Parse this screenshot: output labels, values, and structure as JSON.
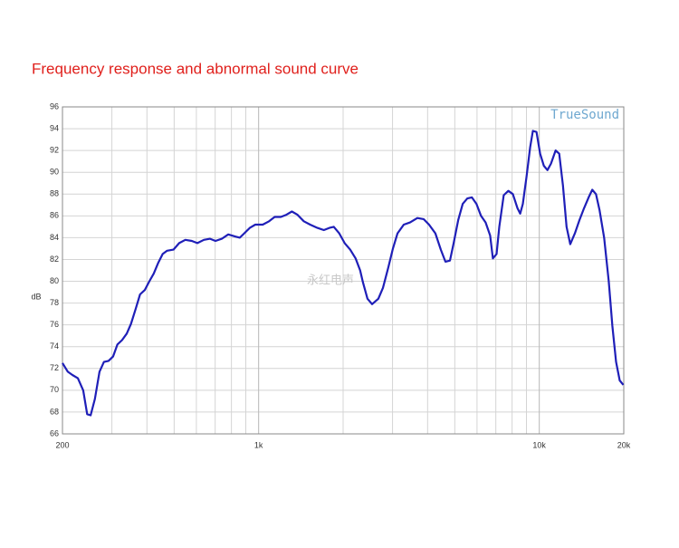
{
  "chart_data": {
    "type": "line",
    "title": "Frequency response and abnormal sound curve",
    "y_label": "dB",
    "annotations": [
      "TrueSound",
      "永红电声"
    ],
    "log_x": true,
    "grid": true,
    "xlim": [
      200,
      20000
    ],
    "ylim": [
      66,
      96
    ],
    "xticks": [
      200,
      {
        "value": 1000,
        "label": "1k"
      },
      {
        "value": 10000,
        "label": "10k"
      },
      {
        "value": 20000,
        "label": "20k"
      }
    ],
    "x_minor_gridlines": [
      300,
      400,
      500,
      600,
      700,
      800,
      900,
      2000,
      3000,
      4000,
      5000,
      6000,
      7000,
      8000,
      9000
    ],
    "yticks": [
      66,
      68,
      70,
      72,
      74,
      76,
      78,
      80,
      82,
      84,
      86,
      88,
      90,
      92,
      94,
      96
    ],
    "x": [
      200,
      209,
      217,
      227,
      237,
      245,
      252,
      261,
      271,
      281,
      292,
      303,
      314,
      326,
      339,
      351,
      365,
      378,
      393,
      408,
      423,
      439,
      455,
      472,
      497,
      521,
      548,
      578,
      605,
      638,
      671,
      702,
      739,
      779,
      827,
      857,
      889,
      930,
      973,
      1034,
      1089,
      1141,
      1200,
      1255,
      1314,
      1375,
      1449,
      1526,
      1620,
      1707,
      1786,
      1853,
      1937,
      2026,
      2119,
      2216,
      2300,
      2353,
      2443,
      2536,
      2670,
      2774,
      2900,
      3010,
      3125,
      3289,
      3463,
      3678,
      3872,
      4048,
      4263,
      4459,
      4628,
      4804,
      4953,
      5142,
      5337,
      5542,
      5752,
      5972,
      6200,
      6436,
      6681,
      6833,
      7044,
      7200,
      7472,
      7758,
      8053,
      8360,
      8550,
      8740,
      9009,
      9282,
      9485,
      9774,
      10070,
      10380,
      10690,
      11010,
      11430,
      11780,
      12140,
      12510,
      12890,
      13390,
      13900,
      14440,
      14990,
      15440,
      15920,
      16400,
      17020,
      17680,
      18210,
      18770,
      19340,
      19930
    ],
    "series": [
      {
        "color": "#1f1fb8",
        "values": [
          72.5,
          71.7,
          71.4,
          71.1,
          70.0,
          67.8,
          67.7,
          69.2,
          71.7,
          72.6,
          72.7,
          73.1,
          74.2,
          74.6,
          75.2,
          76.1,
          77.5,
          78.8,
          79.2,
          80.0,
          80.7,
          81.7,
          82.5,
          82.8,
          82.9,
          83.5,
          83.8,
          83.7,
          83.5,
          83.8,
          83.9,
          83.7,
          83.9,
          84.3,
          84.1,
          84.0,
          84.4,
          84.9,
          85.2,
          85.2,
          85.5,
          85.9,
          85.9,
          86.1,
          86.4,
          86.1,
          85.5,
          85.2,
          84.9,
          84.7,
          84.9,
          85.0,
          84.4,
          83.5,
          82.9,
          82.1,
          81.0,
          79.9,
          78.4,
          77.9,
          78.4,
          79.4,
          81.3,
          83.0,
          84.4,
          85.2,
          85.4,
          85.8,
          85.7,
          85.2,
          84.4,
          82.9,
          81.8,
          81.9,
          83.5,
          85.6,
          87.1,
          87.6,
          87.7,
          87.1,
          86.0,
          85.4,
          84.2,
          82.1,
          82.5,
          85.0,
          87.9,
          88.3,
          88.0,
          86.7,
          86.2,
          87.1,
          89.6,
          92.3,
          93.8,
          93.7,
          91.7,
          90.6,
          90.2,
          90.8,
          92.0,
          91.7,
          88.8,
          85.0,
          83.4,
          84.4,
          85.6,
          86.7,
          87.7,
          88.4,
          88.0,
          86.5,
          84.0,
          80.0,
          75.9,
          72.6,
          70.9,
          70.5
        ]
      }
    ]
  }
}
